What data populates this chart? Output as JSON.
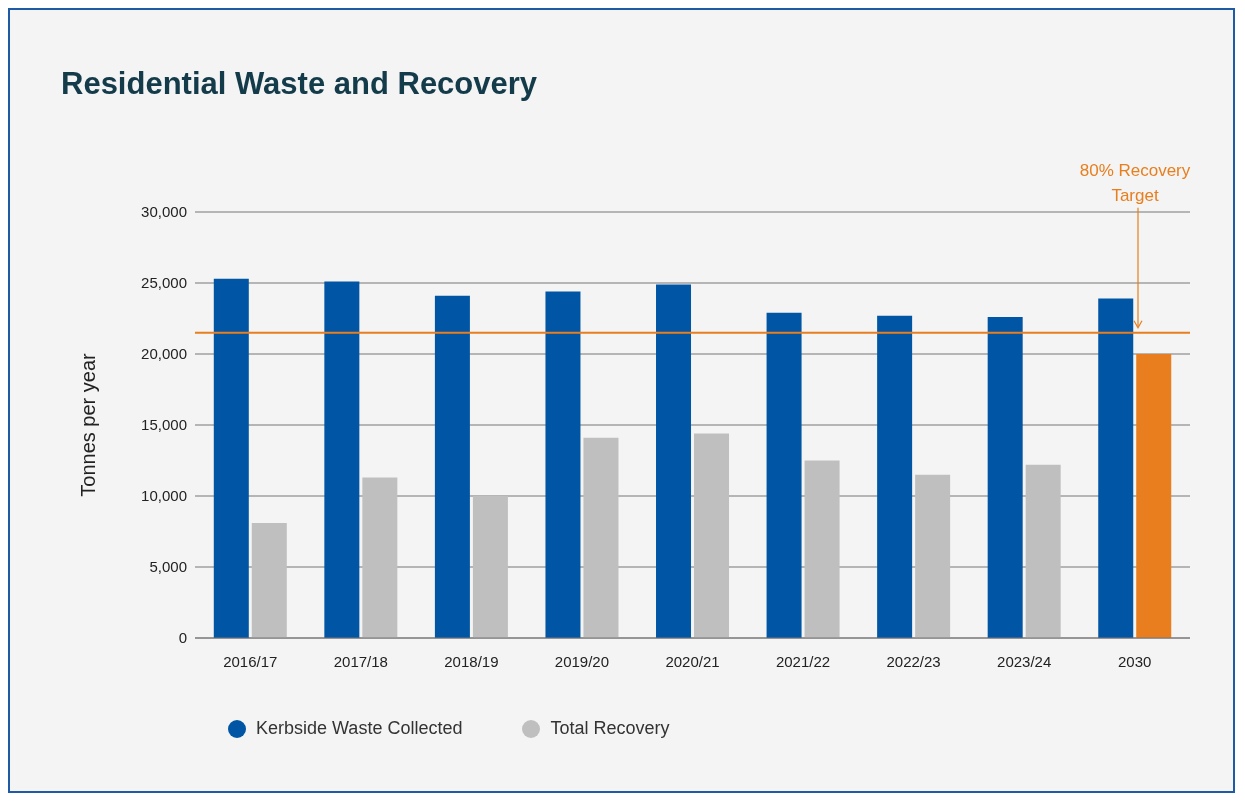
{
  "chart_data": {
    "type": "bar",
    "title": "Residential Waste and Recovery",
    "ylabel": "Tonnes per year",
    "categories": [
      "2016/17",
      "2017/18",
      "2018/19",
      "2019/20",
      "2020/21",
      "2021/22",
      "2022/23",
      "2023/24",
      "2030"
    ],
    "series": [
      {
        "name": "Kerbside Waste Collected",
        "color": "#0055a5",
        "values": [
          25300,
          25100,
          24100,
          24400,
          24900,
          22900,
          22700,
          22600,
          23900
        ]
      },
      {
        "name": "Total Recovery",
        "color": "#bfbfc0",
        "colors": [
          "#bfbfc0",
          "#bfbfc0",
          "#bfbfc0",
          "#bfbfc0",
          "#bfbfc0",
          "#bfbfc0",
          "#bfbfc0",
          "#bfbfc0",
          "#e87e1e"
        ],
        "values": [
          8100,
          11300,
          10000,
          14100,
          14400,
          12500,
          11500,
          12200,
          20000
        ]
      }
    ],
    "ylim": [
      0,
      30000
    ],
    "yticks": [
      0,
      {
        "value": 5000,
        "label": "5,000"
      },
      {
        "value": 10000,
        "label": "10,000"
      },
      {
        "value": 15000,
        "label": "15,000"
      },
      {
        "value": 20000,
        "label": "20,000"
      },
      {
        "value": 25000,
        "label": "25,000"
      },
      {
        "value": 30000,
        "label": "30,000"
      }
    ],
    "grid": "y",
    "legend": "bottom",
    "ref_lines": [
      {
        "axis": "y",
        "value": 21500,
        "label": "80% Recovery Target",
        "color": "#e87e1e"
      }
    ]
  }
}
